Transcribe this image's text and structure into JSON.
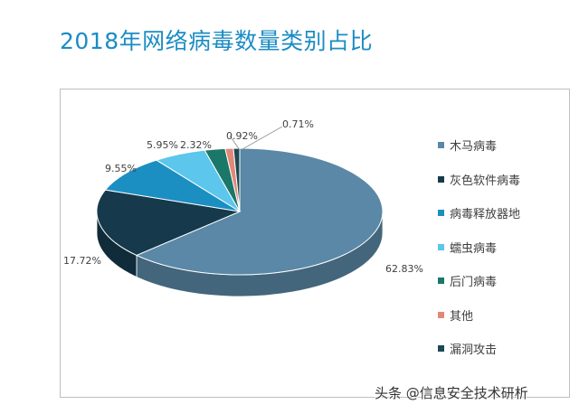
{
  "chart_data": {
    "type": "pie",
    "title": "2018年网络病毒数量类别占比",
    "categories": [
      "木马病毒",
      "灰色软件病毒",
      "病毒释放器地",
      "蠕虫病毒",
      "后门病毒",
      "其他",
      "漏洞攻击"
    ],
    "values": [
      62.83,
      17.72,
      9.55,
      5.95,
      2.32,
      0.92,
      0.71
    ],
    "labels": [
      "62.83%",
      "17.72%",
      "9.55%",
      "5.95%",
      "2.32%",
      "0.92%",
      "0.71%"
    ],
    "colors": [
      "#5a88a6",
      "#163a4c",
      "#1b8fc2",
      "#5cc6ec",
      "#1b7767",
      "#e28878",
      "#1e4856"
    ],
    "legend_position": "right"
  },
  "watermark": "头条 @信息安全技术研析"
}
